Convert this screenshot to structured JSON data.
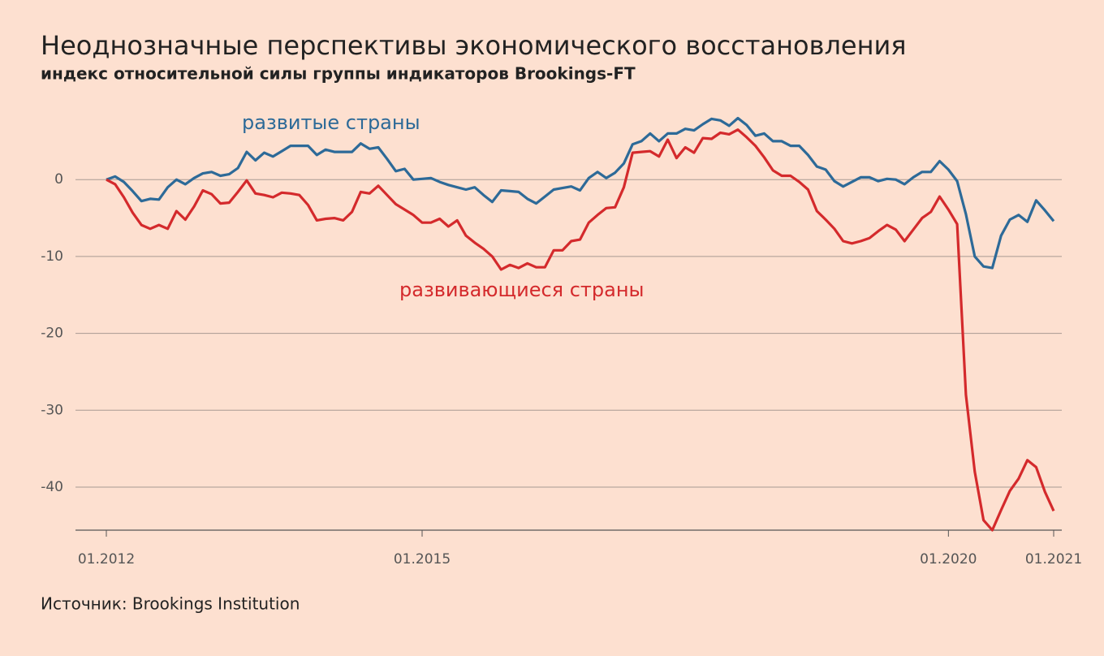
{
  "chart_data": {
    "type": "line",
    "title": "Неоднозначные перспективы экономического восстановления",
    "subtitle": "индекс относительной силы группы индикаторов Brookings-FT",
    "source": "Источник: Brookings Institution",
    "x": [
      "01.2012",
      "02.2012",
      "03.2012",
      "04.2012",
      "05.2012",
      "06.2012",
      "07.2012",
      "08.2012",
      "09.2012",
      "10.2012",
      "11.2012",
      "12.2012",
      "01.2013",
      "02.2013",
      "03.2013",
      "04.2013",
      "05.2013",
      "06.2013",
      "07.2013",
      "08.2013",
      "09.2013",
      "10.2013",
      "11.2013",
      "12.2013",
      "01.2014",
      "02.2014",
      "03.2014",
      "04.2014",
      "05.2014",
      "06.2014",
      "07.2014",
      "08.2014",
      "09.2014",
      "10.2014",
      "11.2014",
      "12.2014",
      "01.2015",
      "02.2015",
      "03.2015",
      "04.2015",
      "05.2015",
      "06.2015",
      "07.2015",
      "08.2015",
      "09.2015",
      "10.2015",
      "11.2015",
      "12.2015",
      "01.2016",
      "02.2016",
      "03.2016",
      "04.2016",
      "05.2016",
      "06.2016",
      "07.2016",
      "08.2016",
      "09.2016",
      "10.2016",
      "11.2016",
      "12.2016",
      "01.2017",
      "02.2017",
      "03.2017",
      "04.2017",
      "05.2017",
      "06.2017",
      "07.2017",
      "08.2017",
      "09.2017",
      "10.2017",
      "11.2017",
      "12.2017",
      "01.2018",
      "02.2018",
      "03.2018",
      "04.2018",
      "05.2018",
      "06.2018",
      "07.2018",
      "08.2018",
      "09.2018",
      "10.2018",
      "11.2018",
      "12.2018",
      "01.2019",
      "02.2019",
      "03.2019",
      "04.2019",
      "05.2019",
      "06.2019",
      "07.2019",
      "08.2019",
      "09.2019",
      "10.2019",
      "11.2019",
      "12.2019",
      "01.2020",
      "02.2020",
      "03.2020",
      "04.2020",
      "05.2020",
      "06.2020",
      "07.2020",
      "08.2020",
      "09.2020",
      "10.2020",
      "11.2020",
      "12.2020",
      "01.2021"
    ],
    "series": [
      {
        "name": "развитые страны",
        "color": "#2d6a98",
        "values": [
          0,
          0.4,
          -0.3,
          -1.5,
          -2.8,
          -2.5,
          -2.6,
          -1.0,
          0,
          -0.6,
          0.2,
          0.8,
          1.0,
          0.5,
          0.7,
          1.5,
          3.6,
          2.5,
          3.5,
          3.0,
          3.7,
          4.4,
          4.4,
          4.4,
          3.2,
          3.9,
          3.6,
          3.6,
          3.6,
          4.7,
          4.0,
          4.2,
          2.7,
          1.1,
          1.4,
          0,
          0.1,
          0.2,
          -0.3,
          -0.7,
          -1.0,
          -1.3,
          -1.0,
          -2.0,
          -2.9,
          -1.4,
          -1.5,
          -1.6,
          -2.5,
          -3.1,
          -2.2,
          -1.3,
          -1.1,
          -0.9,
          -1.4,
          0.2,
          1.0,
          0.2,
          0.9,
          2.1,
          4.6,
          5.0,
          6.0,
          5.0,
          6.0,
          6.0,
          6.6,
          6.4,
          7.2,
          7.9,
          7.7,
          7.0,
          8.0,
          7.1,
          5.7,
          6.0,
          5.0,
          5.0,
          4.4,
          4.4,
          3.2,
          1.7,
          1.3,
          -0.2,
          -0.9,
          -0.3,
          0.3,
          0.3,
          -0.2,
          0.1,
          0,
          -0.6,
          0.3,
          1.0,
          1.0,
          2.4,
          1.3,
          -0.2,
          -4.5,
          -10.0,
          -11.3,
          -11.5,
          -7.3,
          -5.2,
          -4.6,
          -5.5,
          -2.7,
          -4.0,
          -5.4
        ]
      },
      {
        "name": "развивающиеся страны",
        "color": "#d42a2c",
        "values": [
          0,
          -0.6,
          -2.3,
          -4.3,
          -5.9,
          -6.4,
          -5.9,
          -6.4,
          -4.1,
          -5.2,
          -3.5,
          -1.4,
          -1.9,
          -3.1,
          -3.0,
          -1.6,
          -0.1,
          -1.8,
          -2.0,
          -2.3,
          -1.7,
          -1.8,
          -2.0,
          -3.3,
          -5.3,
          -5.1,
          -5.0,
          -5.3,
          -4.2,
          -1.6,
          -1.8,
          -0.8,
          -2.0,
          -3.2,
          -3.9,
          -4.6,
          -5.6,
          -5.6,
          -5.1,
          -6.1,
          -5.3,
          -7.3,
          -8.2,
          -9.0,
          -10.0,
          -11.7,
          -11.1,
          -11.5,
          -10.9,
          -11.4,
          -11.4,
          -9.2,
          -9.2,
          -8.0,
          -7.8,
          -5.6,
          -4.6,
          -3.7,
          -3.6,
          -1.0,
          3.5,
          3.6,
          3.7,
          3.0,
          5.2,
          2.8,
          4.2,
          3.5,
          5.4,
          5.3,
          6.1,
          5.9,
          6.5,
          5.5,
          4.4,
          2.9,
          1.2,
          0.5,
          0.5,
          -0.3,
          -1.3,
          -4.1,
          -5.2,
          -6.4,
          -8.0,
          -8.3,
          -8.0,
          -7.6,
          -6.7,
          -5.9,
          -6.5,
          -8.0,
          -6.5,
          -5.0,
          -4.2,
          -2.2,
          -3.9,
          -5.8,
          -28.0,
          -38.0,
          -44.3,
          -45.6,
          -43.0,
          -40.5,
          -38.9,
          -36.5,
          -37.4,
          -40.6,
          -43.1
        ]
      }
    ],
    "ylim": [
      -45.6,
      9
    ],
    "yticks": [
      0,
      -10,
      -20,
      -30,
      -40
    ],
    "xticks": [
      "01.2012",
      "01.2015",
      "01.2020",
      "01.2021"
    ],
    "grid": true
  }
}
